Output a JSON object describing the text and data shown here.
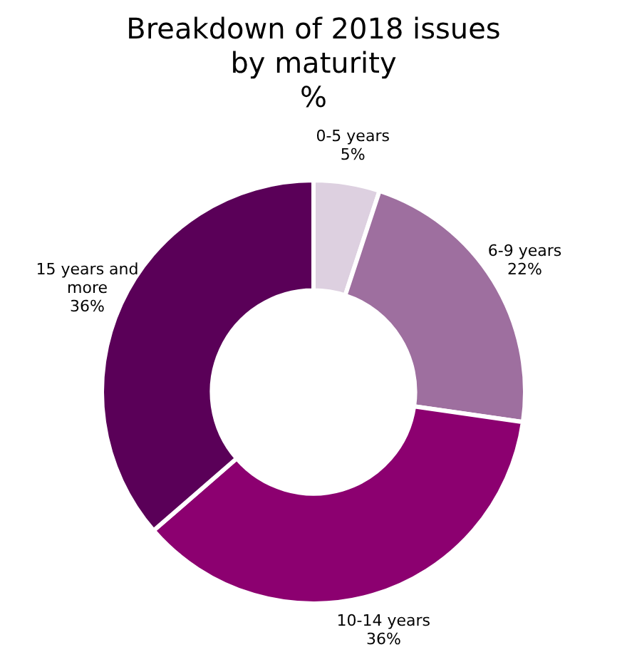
{
  "chart_data": {
    "type": "donut",
    "title": "Breakdown of 2018 issues by maturity",
    "subtitle": "%",
    "categories": [
      "0-5 years",
      "6-9 years",
      "10-14 years",
      "15 years and more"
    ],
    "values": [
      5,
      22,
      36,
      36
    ],
    "value_labels": [
      "5%",
      "22%",
      "36%",
      "36%"
    ],
    "colors": [
      "#ddd0e0",
      "#9e6f9f",
      "#8c0070",
      "#5a0058"
    ],
    "legend": false
  }
}
